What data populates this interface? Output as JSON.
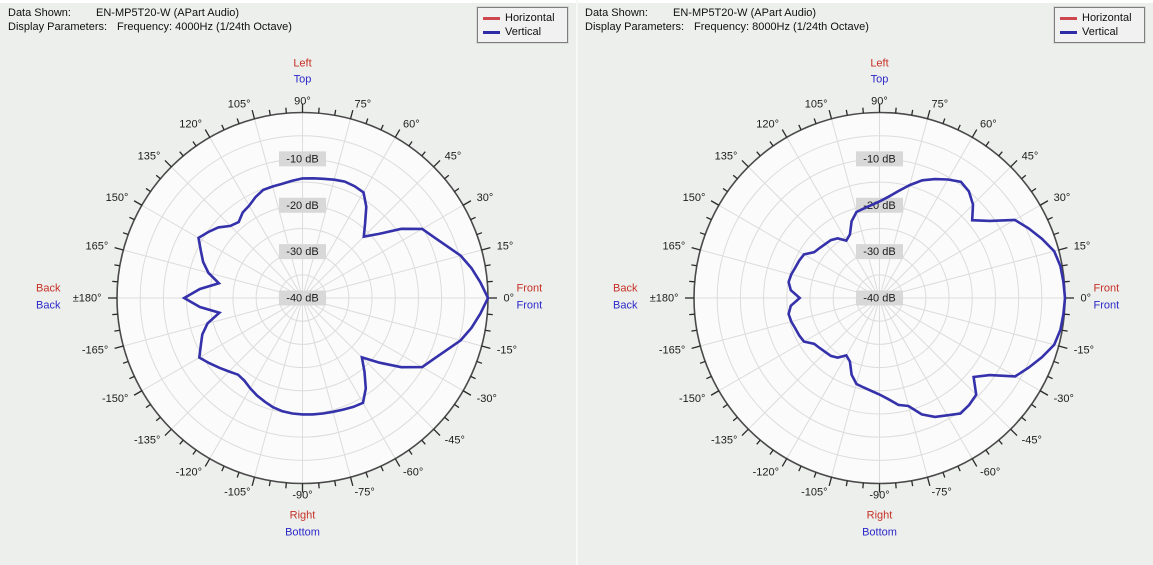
{
  "colors": {
    "background": "#edefed",
    "plot_bg": "#fbfbfb",
    "grid": "#dcdcdc",
    "outer_circle": "#4a4a4a",
    "tick": "#2a2a2a",
    "text": "#1c1c1c",
    "db_label_bg": "#d8d8d8",
    "horizontal_label": "#c63026",
    "vertical_label": "#2b28c8",
    "curve": "#3431aa"
  },
  "panels": [
    {
      "header": {
        "data_shown_label": "Data Shown:",
        "data_shown_value": "EN-MP5T20-W (APart Audio)",
        "display_params_label": "Display Parameters:",
        "display_params_value": "Frequency: 4000Hz (1/24th Octave)"
      },
      "legend": {
        "items": [
          {
            "label": "Horizontal",
            "color": "#cd4750"
          },
          {
            "label": "Vertical",
            "color": "#2e2ba6"
          }
        ]
      }
    },
    {
      "header": {
        "data_shown_label": "Data Shown:",
        "data_shown_value": "EN-MP5T20-W (APart Audio)",
        "display_params_label": "Display Parameters:",
        "display_params_value": "Frequency: 8000Hz (1/24th Octave)"
      },
      "legend": {
        "items": [
          {
            "label": "Horizontal",
            "color": "#cd4750"
          },
          {
            "label": "Vertical",
            "color": "#2e2ba6"
          }
        ]
      }
    }
  ],
  "chart_data": [
    {
      "type": "line",
      "polar": true,
      "title": "EN-MP5T20-W (APart Audio) polar response",
      "frequency": "4000Hz (1/24th Octave)",
      "radial_range_db": [
        0,
        -40
      ],
      "ring_step_db": 5,
      "angle_tick_step_deg": 5,
      "angle_label_step_deg": 15,
      "db_labels": [
        {
          "label": "-10 dB",
          "db": -10
        },
        {
          "label": "-20 dB",
          "db": -20
        },
        {
          "label": "-30 dB",
          "db": -30
        },
        {
          "label": "-40 dB",
          "db": -40
        }
      ],
      "angle_labels": [
        {
          "angle": 90,
          "label": "90°"
        },
        {
          "angle": 75,
          "label": "75°"
        },
        {
          "angle": 60,
          "label": "60°"
        },
        {
          "angle": 45,
          "label": "45°"
        },
        {
          "angle": 30,
          "label": "30°"
        },
        {
          "angle": 15,
          "label": "15°"
        },
        {
          "angle": 0,
          "label": "0°"
        },
        {
          "angle": -15,
          "label": "-15°"
        },
        {
          "angle": -30,
          "label": "-30°"
        },
        {
          "angle": -45,
          "label": "-45°"
        },
        {
          "angle": -60,
          "label": "-60°"
        },
        {
          "angle": -75,
          "label": "-75°"
        },
        {
          "angle": -90,
          "label": "-90°"
        },
        {
          "angle": -105,
          "label": "-105°"
        },
        {
          "angle": -120,
          "label": "-120°"
        },
        {
          "angle": -135,
          "label": "-135°"
        },
        {
          "angle": -150,
          "label": "-150°"
        },
        {
          "angle": -165,
          "label": "-165°"
        },
        {
          "angle": 180,
          "label": "±180°"
        },
        {
          "angle": 165,
          "label": "165°"
        },
        {
          "angle": 150,
          "label": "150°"
        },
        {
          "angle": 135,
          "label": "135°"
        },
        {
          "angle": 120,
          "label": "120°"
        },
        {
          "angle": 105,
          "label": "105°"
        }
      ],
      "direction_labels": {
        "top": [
          "Left",
          "Top"
        ],
        "right": [
          "Front",
          "Front"
        ],
        "bottom": [
          "Right",
          "Bottom"
        ],
        "left": [
          "Back",
          "Back"
        ]
      },
      "series": [
        {
          "name": "Vertical",
          "color": "#3431aa",
          "points": [
            [
              0,
              0
            ],
            [
              5,
              -1.5
            ],
            [
              10,
              -3
            ],
            [
              15,
              -4.7
            ],
            [
              20,
              -7
            ],
            [
              25,
              -8.8
            ],
            [
              30,
              -10.2
            ],
            [
              35,
              -14
            ],
            [
              40,
              -18.5
            ],
            [
              45,
              -21.3
            ],
            [
              50,
              -19
            ],
            [
              55,
              -16
            ],
            [
              60,
              -13.7
            ],
            [
              65,
              -13.4
            ],
            [
              70,
              -13.3
            ],
            [
              75,
              -13.6
            ],
            [
              80,
              -13.9
            ],
            [
              85,
              -14.1
            ],
            [
              90,
              -14.2
            ],
            [
              95,
              -14.6
            ],
            [
              100,
              -15
            ],
            [
              105,
              -15.1
            ],
            [
              110,
              -15.2
            ],
            [
              115,
              -16
            ],
            [
              120,
              -17
            ],
            [
              125,
              -17.5
            ],
            [
              130,
              -18.6
            ],
            [
              135,
              -18
            ],
            [
              140,
              -16.3
            ],
            [
              145,
              -15.2
            ],
            [
              150,
              -14.1
            ],
            [
              155,
              -15.8
            ],
            [
              160,
              -17.2
            ],
            [
              165,
              -19
            ],
            [
              170,
              -21.7
            ],
            [
              175,
              -17.8
            ],
            [
              180,
              -14.5
            ],
            [
              -175,
              -17.8
            ],
            [
              -170,
              -21.8
            ],
            [
              -165,
              -18.8
            ],
            [
              -160,
              -17
            ],
            [
              -155,
              -15.8
            ],
            [
              -150,
              -14.3
            ],
            [
              -145,
              -15.5
            ],
            [
              -140,
              -16.6
            ],
            [
              -135,
              -17.6
            ],
            [
              -130,
              -18.4
            ],
            [
              -125,
              -18.2
            ],
            [
              -120,
              -17.5
            ],
            [
              -115,
              -16.8
            ],
            [
              -110,
              -16.2
            ],
            [
              -105,
              -15.6
            ],
            [
              -100,
              -15.2
            ],
            [
              -95,
              -15
            ],
            [
              -90,
              -14.9
            ],
            [
              -85,
              -14.8
            ],
            [
              -80,
              -14.7
            ],
            [
              -75,
              -14.6
            ],
            [
              -70,
              -14.4
            ],
            [
              -65,
              -14.1
            ],
            [
              -60,
              -13.9
            ],
            [
              -55,
              -16.2
            ],
            [
              -50,
              -19.2
            ],
            [
              -45,
              -21.9
            ],
            [
              -40,
              -18.3
            ],
            [
              -35,
              -14
            ],
            [
              -30,
              -10.2
            ],
            [
              -25,
              -8.8
            ],
            [
              -20,
              -7
            ],
            [
              -15,
              -4.7
            ],
            [
              -10,
              -3
            ],
            [
              -5,
              -1.5
            ]
          ]
        }
      ]
    },
    {
      "type": "line",
      "polar": true,
      "title": "EN-MP5T20-W (APart Audio) polar response",
      "frequency": "8000Hz (1/24th Octave)",
      "radial_range_db": [
        0,
        -40
      ],
      "ring_step_db": 5,
      "angle_tick_step_deg": 5,
      "angle_label_step_deg": 15,
      "db_labels": [
        {
          "label": "-10 dB",
          "db": -10
        },
        {
          "label": "-20 dB",
          "db": -20
        },
        {
          "label": "-30 dB",
          "db": -30
        },
        {
          "label": "-40 dB",
          "db": -40
        }
      ],
      "angle_labels": [
        {
          "angle": 90,
          "label": "90°"
        },
        {
          "angle": 75,
          "label": "75°"
        },
        {
          "angle": 60,
          "label": "60°"
        },
        {
          "angle": 45,
          "label": "45°"
        },
        {
          "angle": 30,
          "label": "30°"
        },
        {
          "angle": 15,
          "label": "15°"
        },
        {
          "angle": 0,
          "label": "0°"
        },
        {
          "angle": -15,
          "label": "-15°"
        },
        {
          "angle": -30,
          "label": "-30°"
        },
        {
          "angle": -45,
          "label": "-45°"
        },
        {
          "angle": -60,
          "label": "-60°"
        },
        {
          "angle": -75,
          "label": "-75°"
        },
        {
          "angle": -90,
          "label": "-90°"
        },
        {
          "angle": -105,
          "label": "-105°"
        },
        {
          "angle": -120,
          "label": "-120°"
        },
        {
          "angle": -135,
          "label": "-135°"
        },
        {
          "angle": -150,
          "label": "-150°"
        },
        {
          "angle": -165,
          "label": "-165°"
        },
        {
          "angle": 180,
          "label": "±180°"
        },
        {
          "angle": 165,
          "label": "165°"
        },
        {
          "angle": 150,
          "label": "150°"
        },
        {
          "angle": 135,
          "label": "135°"
        },
        {
          "angle": 120,
          "label": "120°"
        },
        {
          "angle": 105,
          "label": "105°"
        }
      ],
      "direction_labels": {
        "top": [
          "Left",
          "Top"
        ],
        "right": [
          "Front",
          "Front"
        ],
        "bottom": [
          "Right",
          "Bottom"
        ],
        "left": [
          "Back",
          "Back"
        ]
      },
      "series": [
        {
          "name": "Vertical",
          "color": "#3431aa",
          "points": [
            [
              0,
              0
            ],
            [
              5,
              -0.2
            ],
            [
              10,
              -0.4
            ],
            [
              15,
              -1
            ],
            [
              20,
              -2.7
            ],
            [
              25,
              -4.5
            ],
            [
              30,
              -6.3
            ],
            [
              35,
              -11
            ],
            [
              40,
              -13.9
            ],
            [
              45,
              -11.5
            ],
            [
              50,
              -10
            ],
            [
              55,
              -9.4
            ],
            [
              60,
              -10.5
            ],
            [
              65,
              -11.7
            ],
            [
              70,
              -13
            ],
            [
              75,
              -14.8
            ],
            [
              80,
              -16.6
            ],
            [
              85,
              -18.1
            ],
            [
              90,
              -19.2
            ],
            [
              95,
              -19.9
            ],
            [
              100,
              -20.4
            ],
            [
              105,
              -20.8
            ],
            [
              110,
              -22.4
            ],
            [
              115,
              -24.9
            ],
            [
              120,
              -25.7
            ],
            [
              125,
              -24.3
            ],
            [
              130,
              -23.7
            ],
            [
              135,
              -23.5
            ],
            [
              140,
              -23.2
            ],
            [
              145,
              -22.8
            ],
            [
              150,
              -21.2
            ],
            [
              155,
              -20.9
            ],
            [
              160,
              -20.7
            ],
            [
              165,
              -20.3
            ],
            [
              170,
              -20.1
            ],
            [
              175,
              -20.8
            ],
            [
              180,
              -22.8
            ],
            [
              -175,
              -20.8
            ],
            [
              -170,
              -20.1
            ],
            [
              -165,
              -20.3
            ],
            [
              -160,
              -20.7
            ],
            [
              -155,
              -20.9
            ],
            [
              -150,
              -21.2
            ],
            [
              -145,
              -22.8
            ],
            [
              -140,
              -23.2
            ],
            [
              -135,
              -23.5
            ],
            [
              -130,
              -23.7
            ],
            [
              -125,
              -24.3
            ],
            [
              -120,
              -25.7
            ],
            [
              -115,
              -24.9
            ],
            [
              -110,
              -22.4
            ],
            [
              -105,
              -20.8
            ],
            [
              -100,
              -20.4
            ],
            [
              -95,
              -19.9
            ],
            [
              -90,
              -19.2
            ],
            [
              -85,
              -18.1
            ],
            [
              -80,
              -16.6
            ],
            [
              -75,
              -15.9
            ],
            [
              -70,
              -13.3
            ],
            [
              -65,
              -11.7
            ],
            [
              -60,
              -10.8
            ],
            [
              -55,
              -9.6
            ],
            [
              -50,
              -9.9
            ],
            [
              -45,
              -10.5
            ],
            [
              -40,
              -13.5
            ],
            [
              -35,
              -11
            ],
            [
              -30,
              -6.2
            ],
            [
              -25,
              -4.5
            ],
            [
              -20,
              -2.7
            ],
            [
              -15,
              -1
            ],
            [
              -10,
              -0.4
            ],
            [
              -5,
              -0.2
            ]
          ]
        }
      ]
    }
  ]
}
